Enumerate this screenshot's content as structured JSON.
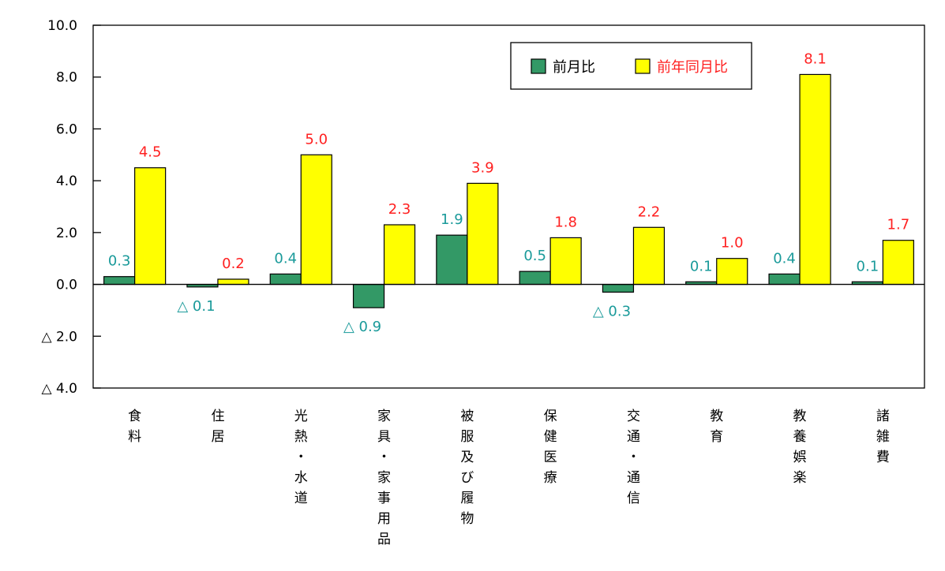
{
  "chart_data": {
    "type": "bar",
    "categories": [
      "食料",
      "住居",
      "光熱・水道",
      "家具・家事用品",
      "被服及び履物",
      "保健医療",
      "交通・通信",
      "教育",
      "教養娯楽",
      "諸雑費"
    ],
    "series": [
      {
        "name": "前月比",
        "values": [
          0.3,
          -0.1,
          0.4,
          -0.9,
          1.9,
          0.5,
          -0.3,
          0.1,
          0.4,
          0.1
        ],
        "color": "#339966",
        "label_color": "#1a9a9a"
      },
      {
        "name": "前年同月比",
        "values": [
          4.5,
          0.2,
          5.0,
          2.3,
          3.9,
          1.8,
          2.2,
          1.0,
          8.1,
          1.7
        ],
        "color": "#ffff00",
        "label_color": "#ff2020"
      }
    ],
    "ylim": [
      -4.0,
      10.0
    ],
    "yticks": [
      10.0,
      8.0,
      6.0,
      4.0,
      2.0,
      0.0,
      -2.0,
      -4.0
    ],
    "ytick_labels": [
      "10.0",
      "8.0",
      "6.0",
      "4.0",
      "2.0",
      "0.0",
      "△ 2.0",
      "△ 4.0"
    ],
    "negative_prefix": "△ ",
    "legend_position": "top-right",
    "grid": false,
    "title": "",
    "xlabel": "",
    "ylabel": ""
  }
}
